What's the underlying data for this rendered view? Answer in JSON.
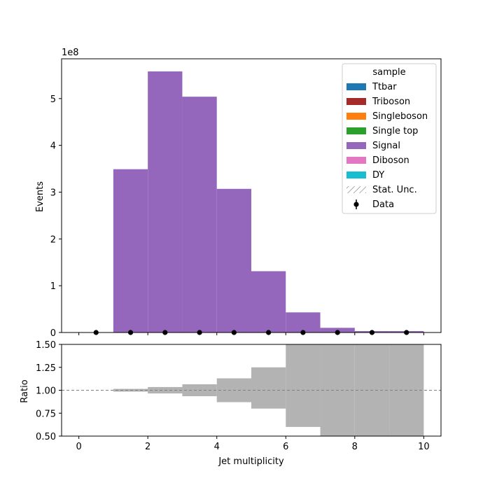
{
  "chart_data": [
    {
      "id": "main",
      "type": "bar",
      "ylabel": "Events",
      "y_multiplier_label": "1e8",
      "x_range": [
        -0.5,
        10.5
      ],
      "ylim": [
        0,
        5.85
      ],
      "y_ticks": [
        0,
        1,
        2,
        3,
        4,
        5
      ],
      "x_ticks": [
        0,
        2,
        4,
        6,
        8,
        10
      ],
      "bin_edges": [
        0,
        1,
        2,
        3,
        4,
        5,
        6,
        7,
        8,
        9,
        10
      ],
      "series": [
        {
          "name": "Ttbar",
          "color": "#1f77b4",
          "values": [
            0,
            0,
            0,
            0,
            0,
            0,
            0,
            0,
            0,
            0
          ]
        },
        {
          "name": "Triboson",
          "color": "#a52a2a",
          "values": [
            0,
            0,
            0,
            0,
            0,
            0,
            0,
            0,
            0,
            0
          ]
        },
        {
          "name": "Singleboson",
          "color": "#ff7f0e",
          "values": [
            0,
            0,
            0,
            0,
            0,
            0,
            0,
            0,
            0,
            0
          ]
        },
        {
          "name": "Single top",
          "color": "#2ca02c",
          "values": [
            0,
            0,
            0,
            0,
            0,
            0,
            0,
            0,
            0,
            0
          ]
        },
        {
          "name": "Signal",
          "color": "#9467bd",
          "values": [
            0,
            3.49,
            5.58,
            5.04,
            3.07,
            1.31,
            0.43,
            0.1,
            0.03,
            0.03
          ]
        },
        {
          "name": "Diboson",
          "color": "#e377c2",
          "values": [
            0,
            0,
            0,
            0,
            0,
            0,
            0,
            0,
            0,
            0
          ]
        },
        {
          "name": "DY",
          "color": "#17becf",
          "values": [
            0,
            0,
            0,
            0,
            0,
            0,
            0,
            0,
            0,
            0
          ]
        }
      ],
      "data_points": {
        "name": "Data",
        "x": [
          0.5,
          1.5,
          2.5,
          3.5,
          4.5,
          5.5,
          6.5,
          7.5,
          8.5,
          9.5
        ],
        "y": [
          0,
          0,
          0,
          0,
          0,
          0,
          0,
          0,
          0,
          0
        ]
      },
      "legend": {
        "title": "sample",
        "placement": "top-right",
        "entries": [
          "Ttbar",
          "Triboson",
          "Singleboson",
          "Single top",
          "Signal",
          "Diboson",
          "DY",
          "Stat. Unc.",
          "Data"
        ]
      }
    },
    {
      "id": "ratio",
      "type": "area",
      "xlabel": "Jet multiplicity",
      "ylabel": "Ratio",
      "ylim": [
        0.5,
        1.5
      ],
      "y_ticks": [
        "0.50",
        "0.75",
        "1.00",
        "1.25",
        "1.50"
      ],
      "x_ticks": [
        "0",
        "2",
        "4",
        "6",
        "8",
        "10"
      ],
      "reference_line": 1.0,
      "band_color": "#b3b3b3",
      "band": [
        {
          "x0": 1,
          "x1": 2,
          "low": 0.985,
          "high": 1.015
        },
        {
          "x0": 2,
          "x1": 3,
          "low": 0.965,
          "high": 1.035
        },
        {
          "x0": 3,
          "x1": 4,
          "low": 0.935,
          "high": 1.065
        },
        {
          "x0": 4,
          "x1": 5,
          "low": 0.87,
          "high": 1.13
        },
        {
          "x0": 5,
          "x1": 6,
          "low": 0.8,
          "high": 1.25
        },
        {
          "x0": 6,
          "x1": 7,
          "low": 0.6,
          "high": 1.5
        },
        {
          "x0": 7,
          "x1": 8,
          "low": 0.5,
          "high": 1.5
        },
        {
          "x0": 8,
          "x1": 9,
          "low": 0.5,
          "high": 1.5
        },
        {
          "x0": 9,
          "x1": 10,
          "low": 0.5,
          "high": 1.5
        }
      ]
    }
  ]
}
